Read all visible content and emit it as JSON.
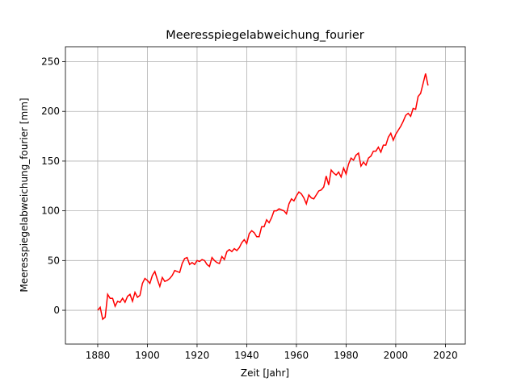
{
  "chart_data": {
    "type": "line",
    "title": "Meeresspiegelabweichung_fourier",
    "xlabel": "Zeit [Jahr]",
    "ylabel": "Meeresspiegelabweichung_fourier [mm]",
    "x": [
      1880,
      1881,
      1882,
      1883,
      1884,
      1885,
      1886,
      1887,
      1888,
      1889,
      1890,
      1891,
      1892,
      1893,
      1894,
      1895,
      1896,
      1897,
      1898,
      1899,
      1900,
      1901,
      1902,
      1903,
      1904,
      1905,
      1906,
      1907,
      1908,
      1909,
      1910,
      1911,
      1912,
      1913,
      1914,
      1915,
      1916,
      1917,
      1918,
      1919,
      1920,
      1921,
      1922,
      1923,
      1924,
      1925,
      1926,
      1927,
      1928,
      1929,
      1930,
      1931,
      1932,
      1933,
      1934,
      1935,
      1936,
      1937,
      1938,
      1939,
      1940,
      1941,
      1942,
      1943,
      1944,
      1945,
      1946,
      1947,
      1948,
      1949,
      1950,
      1951,
      1952,
      1953,
      1954,
      1955,
      1956,
      1957,
      1958,
      1959,
      1960,
      1961,
      1962,
      1963,
      1964,
      1965,
      1966,
      1967,
      1968,
      1969,
      1970,
      1971,
      1972,
      1973,
      1974,
      1975,
      1976,
      1977,
      1978,
      1979,
      1980,
      1981,
      1982,
      1983,
      1984,
      1985,
      1986,
      1987,
      1988,
      1989,
      1990,
      1991,
      1992,
      1993,
      1994,
      1995,
      1996,
      1997,
      1998,
      1999,
      2000,
      2001,
      2002,
      2003,
      2004,
      2005,
      2006,
      2007,
      2008,
      2009,
      2010,
      2011,
      2012,
      2013
    ],
    "series": [
      {
        "name": "Meeresspiegelabweichung_fourier",
        "color": "#ff0000",
        "values": [
          0,
          3,
          -9,
          -7,
          16,
          12,
          12,
          4,
          9,
          8,
          12,
          8,
          14,
          16,
          9,
          18,
          13,
          15,
          27,
          32,
          30,
          27,
          35,
          39,
          31,
          24,
          33,
          29,
          30,
          32,
          35,
          40,
          39,
          38,
          47,
          52,
          53,
          46,
          48,
          46,
          50,
          49,
          51,
          50,
          46,
          44,
          53,
          50,
          48,
          47,
          54,
          51,
          59,
          61,
          59,
          62,
          60,
          63,
          68,
          71,
          67,
          77,
          80,
          78,
          74,
          74,
          84,
          84,
          91,
          88,
          93,
          100,
          100,
          102,
          101,
          100,
          97,
          107,
          112,
          110,
          115,
          119,
          117,
          113,
          107,
          116,
          113,
          112,
          116,
          120,
          121,
          124,
          135,
          126,
          141,
          138,
          136,
          139,
          134,
          143,
          137,
          147,
          153,
          151,
          156,
          158,
          145,
          149,
          146,
          153,
          155,
          160,
          160,
          164,
          159,
          166,
          166,
          174,
          178,
          171,
          177,
          181,
          185,
          190,
          196,
          198,
          195,
          203,
          202,
          215,
          218,
          228,
          238,
          226
        ]
      }
    ],
    "xlim": [
      1867,
      2028
    ],
    "ylim": [
      -34,
      265
    ],
    "xticks": [
      1880,
      1900,
      1920,
      1940,
      1960,
      1980,
      2000,
      2020
    ],
    "yticks": [
      0,
      50,
      100,
      150,
      200,
      250
    ],
    "grid": true
  }
}
